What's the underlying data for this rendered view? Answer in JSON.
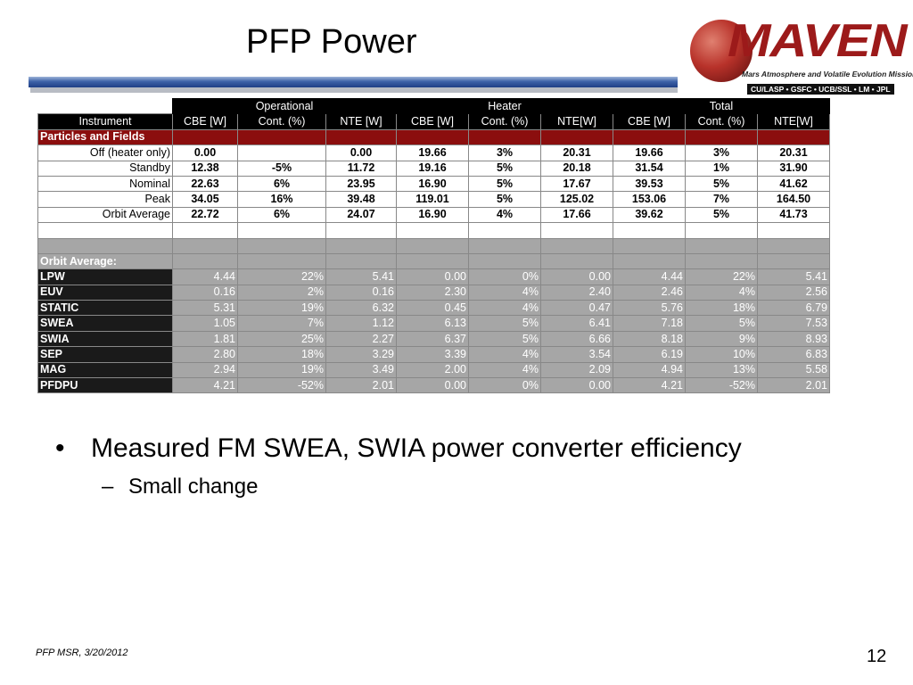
{
  "slide": {
    "title": "PFP Power",
    "bullet1": "Measured FM SWEA, SWIA power converter efficiency",
    "bullet1_marker": "•",
    "bullet2": "Small change",
    "bullet2_marker": "–",
    "footer": "PFP MSR, 3/20/2012",
    "page_number": "12"
  },
  "logo": {
    "word": "MAVEN",
    "mission": "Mars Atmosphere and Volatile Evolution Mission",
    "partners": "CU/LASP • GSFC • UCB/SSL • LM • JPL",
    "color": "#9c1a1a"
  },
  "table": {
    "groups": [
      "Operational",
      "Heater",
      "Total"
    ],
    "columns": [
      "Instrument",
      "CBE [W]",
      "Cont. (%)",
      "NTE [W]",
      "CBE [W]",
      "Cont. (%)",
      "NTE[W]",
      "CBE [W]",
      "Cont. (%)",
      "NTE[W]"
    ],
    "section1": "Particles and Fields",
    "rowsA": [
      [
        "Off (heater only)",
        "0.00",
        "",
        "0.00",
        "19.66",
        "3%",
        "20.31",
        "19.66",
        "3%",
        "20.31"
      ],
      [
        "Standby",
        "12.38",
        "-5%",
        "11.72",
        "19.16",
        "5%",
        "20.18",
        "31.54",
        "1%",
        "31.90"
      ],
      [
        "Nominal",
        "22.63",
        "6%",
        "23.95",
        "16.90",
        "5%",
        "17.67",
        "39.53",
        "5%",
        "41.62"
      ],
      [
        "Peak",
        "34.05",
        "16%",
        "39.48",
        "119.01",
        "5%",
        "125.02",
        "153.06",
        "7%",
        "164.50"
      ],
      [
        "Orbit Average",
        "22.72",
        "6%",
        "24.07",
        "16.90",
        "4%",
        "17.66",
        "39.62",
        "5%",
        "41.73"
      ]
    ],
    "section2": "Orbit Average:",
    "rowsB": [
      [
        "LPW",
        "4.44",
        "22%",
        "5.41",
        "0.00",
        "0%",
        "0.00",
        "4.44",
        "22%",
        "5.41"
      ],
      [
        "EUV",
        "0.16",
        "2%",
        "0.16",
        "2.30",
        "4%",
        "2.40",
        "2.46",
        "4%",
        "2.56"
      ],
      [
        "STATIC",
        "5.31",
        "19%",
        "6.32",
        "0.45",
        "4%",
        "0.47",
        "5.76",
        "18%",
        "6.79"
      ],
      [
        "SWEA",
        "1.05",
        "7%",
        "1.12",
        "6.13",
        "5%",
        "6.41",
        "7.18",
        "5%",
        "7.53"
      ],
      [
        "SWIA",
        "1.81",
        "25%",
        "2.27",
        "6.37",
        "5%",
        "6.66",
        "8.18",
        "9%",
        "8.93"
      ],
      [
        "SEP",
        "2.80",
        "18%",
        "3.29",
        "3.39",
        "4%",
        "3.54",
        "6.19",
        "10%",
        "6.83"
      ],
      [
        "MAG",
        "2.94",
        "19%",
        "3.49",
        "2.00",
        "4%",
        "2.09",
        "4.94",
        "13%",
        "5.58"
      ],
      [
        "PFDPU",
        "4.21",
        "-52%",
        "2.01",
        "0.00",
        "0%",
        "0.00",
        "4.21",
        "-52%",
        "2.01"
      ]
    ]
  }
}
